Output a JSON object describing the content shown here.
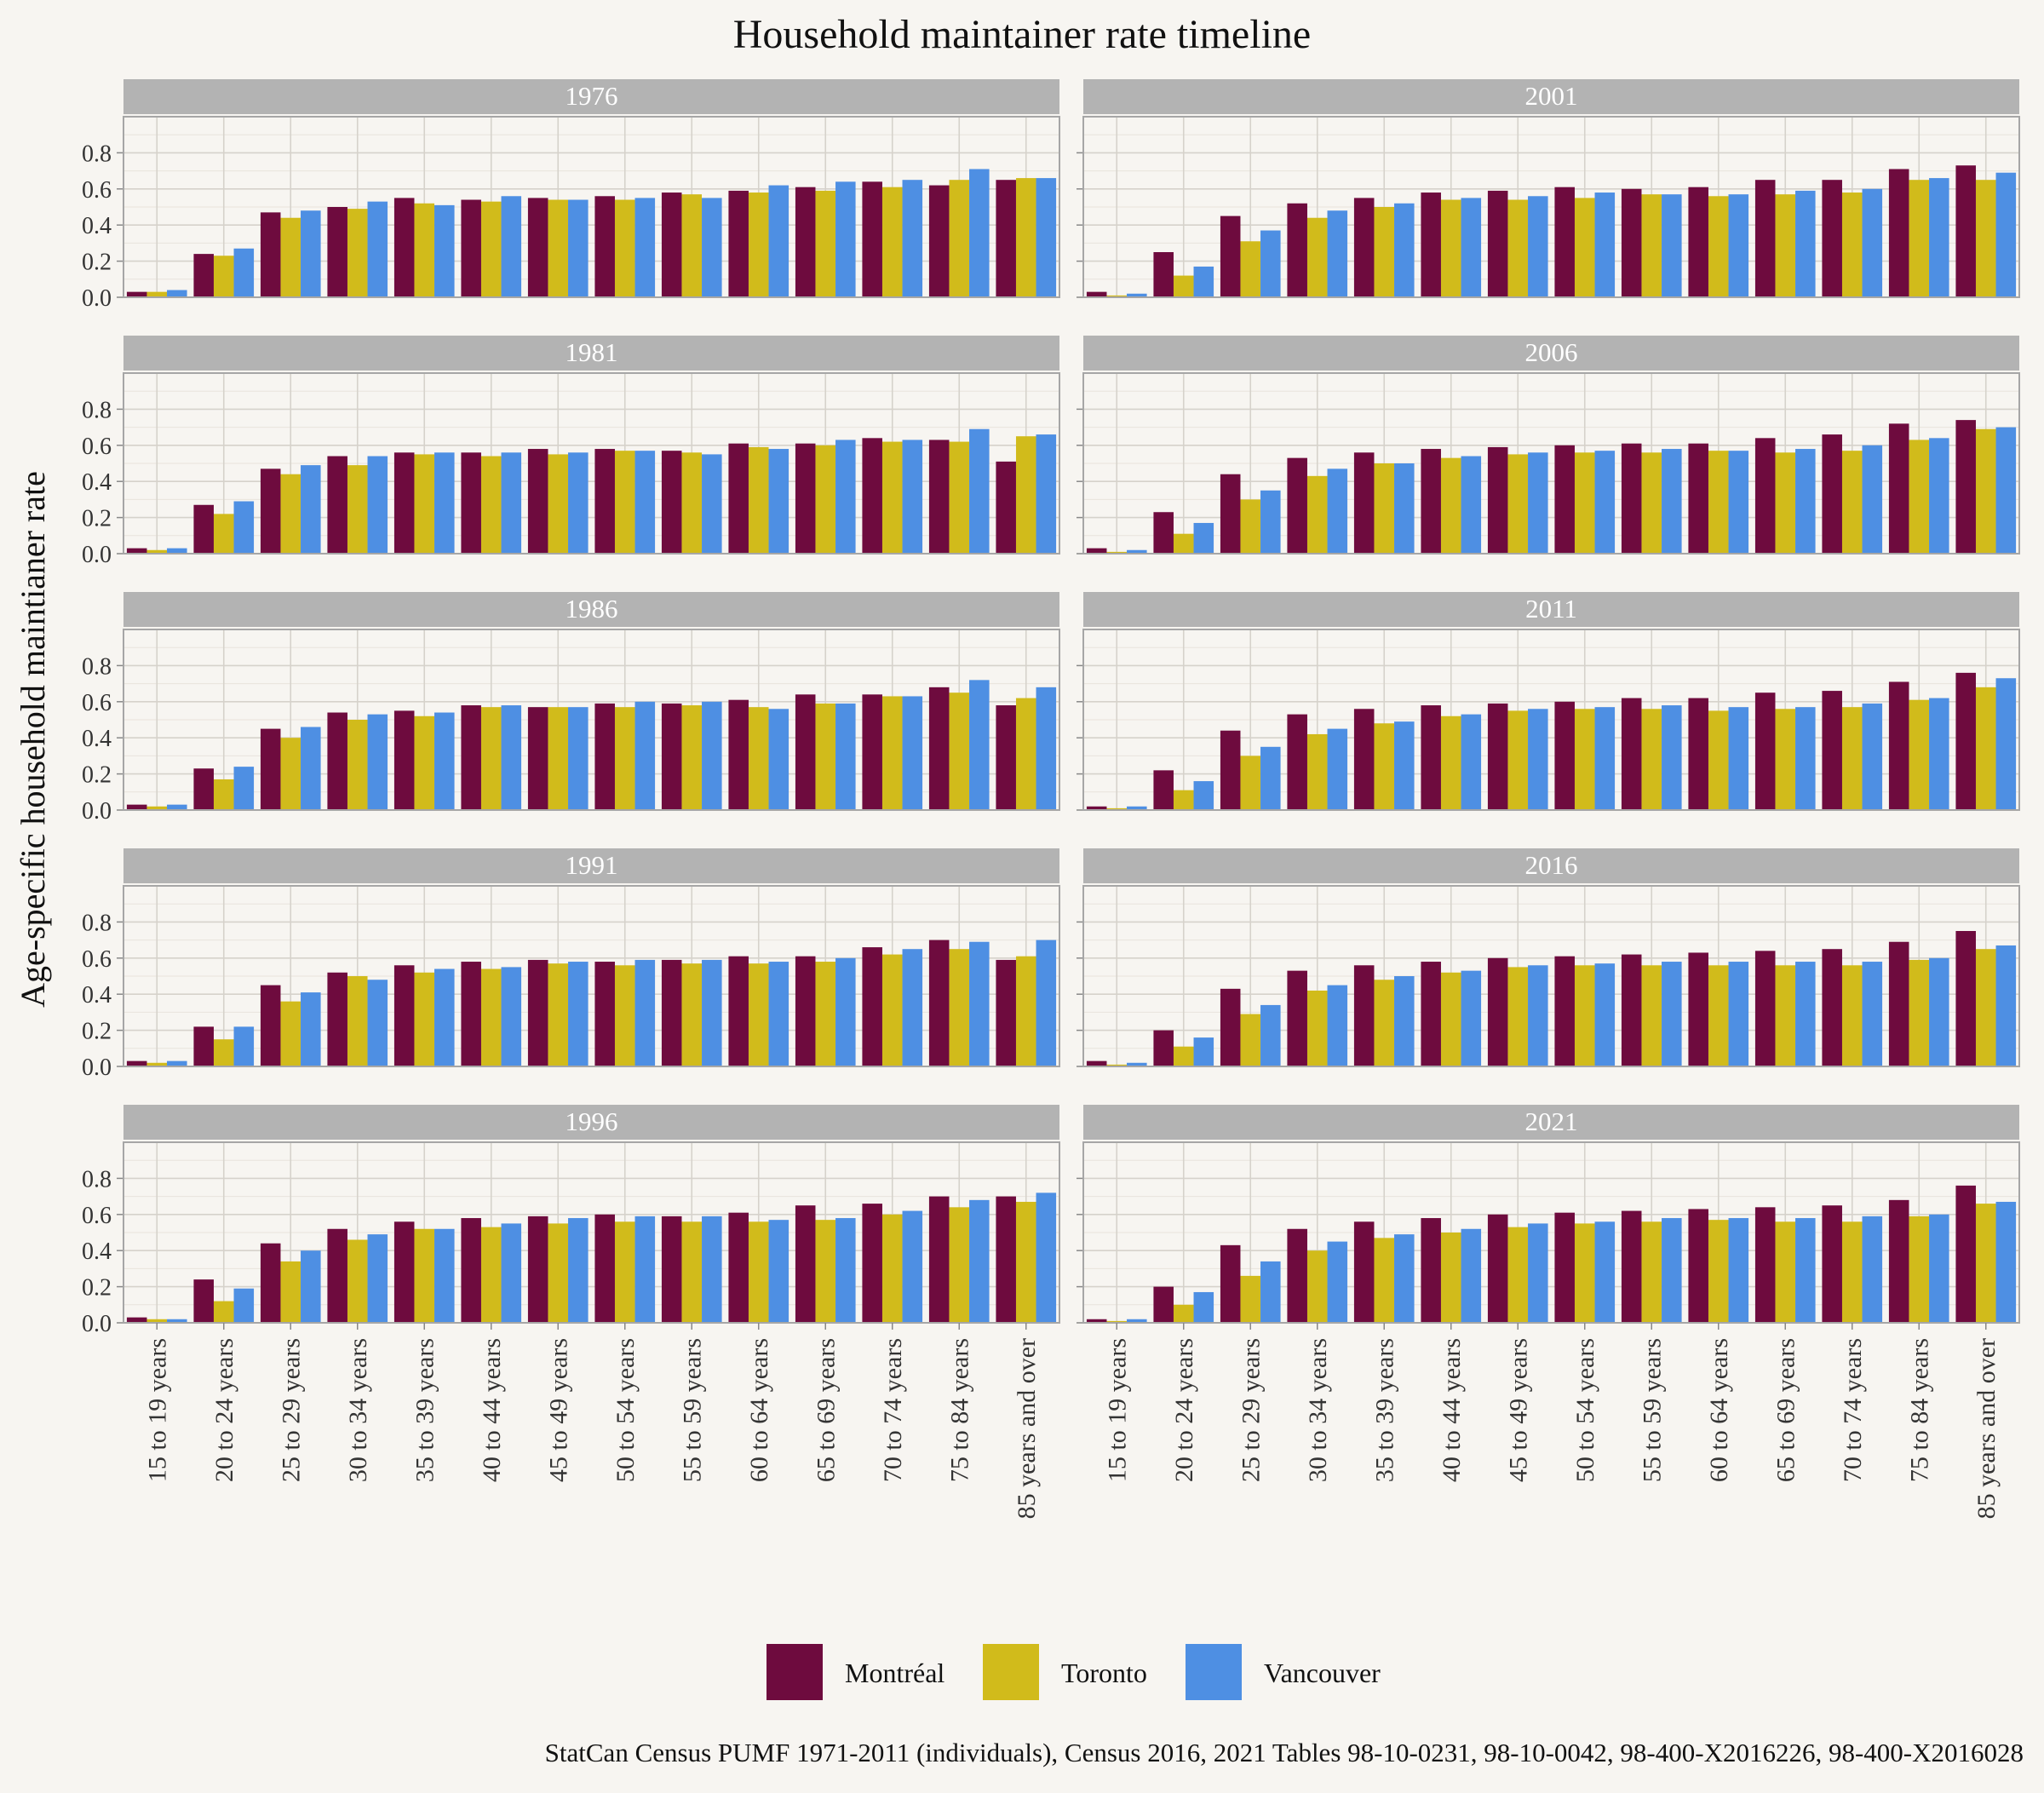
{
  "chart_data": {
    "type": "bar",
    "title": "Household maintainer rate timeline",
    "ylabel": "Age-specific household maintianer rate",
    "xlabel": "",
    "ylim": [
      0,
      1.0
    ],
    "yticks": [
      "0.0",
      "0.2",
      "0.4",
      "0.6",
      "0.8"
    ],
    "categories": [
      "15 to 19 years",
      "20 to 24 years",
      "25 to 29 years",
      "30 to 34 years",
      "35 to 39 years",
      "40 to 44 years",
      "45 to 49 years",
      "50 to 54 years",
      "55 to 59 years",
      "60 to 64 years",
      "65 to 69 years",
      "70 to 74 years",
      "75 to 84 years",
      "85 years and over"
    ],
    "series_names": [
      "Montréal",
      "Toronto",
      "Vancouver"
    ],
    "colors": [
      "#6e0b3e",
      "#d1bb1b",
      "#4e8fe3"
    ],
    "grid": true,
    "legend_position": "bottom",
    "caption": "StatCan Census PUMF 1971-2011 (individuals), Census 2016, 2021 Tables 98-10-0231, 98-10-0042, 98-400-X2016226, 98-400-X2016028",
    "panels": [
      {
        "label": "1976",
        "series": [
          {
            "name": "Montréal",
            "values": [
              0.03,
              0.24,
              0.47,
              0.5,
              0.55,
              0.54,
              0.55,
              0.56,
              0.58,
              0.59,
              0.61,
              0.64,
              0.62,
              0.65
            ]
          },
          {
            "name": "Toronto",
            "values": [
              0.03,
              0.23,
              0.44,
              0.49,
              0.52,
              0.53,
              0.54,
              0.54,
              0.57,
              0.58,
              0.59,
              0.61,
              0.65,
              0.66
            ]
          },
          {
            "name": "Vancouver",
            "values": [
              0.04,
              0.27,
              0.48,
              0.53,
              0.51,
              0.56,
              0.54,
              0.55,
              0.55,
              0.62,
              0.64,
              0.65,
              0.71,
              0.66
            ]
          }
        ]
      },
      {
        "label": "2001",
        "series": [
          {
            "name": "Montréal",
            "values": [
              0.03,
              0.25,
              0.45,
              0.52,
              0.55,
              0.58,
              0.59,
              0.61,
              0.6,
              0.61,
              0.65,
              0.65,
              0.71,
              0.73
            ]
          },
          {
            "name": "Toronto",
            "values": [
              0.01,
              0.12,
              0.31,
              0.44,
              0.5,
              0.54,
              0.54,
              0.55,
              0.57,
              0.56,
              0.57,
              0.58,
              0.65,
              0.65
            ]
          },
          {
            "name": "Vancouver",
            "values": [
              0.02,
              0.17,
              0.37,
              0.48,
              0.52,
              0.55,
              0.56,
              0.58,
              0.57,
              0.57,
              0.59,
              0.6,
              0.66,
              0.69
            ]
          }
        ]
      },
      {
        "label": "1981",
        "series": [
          {
            "name": "Montréal",
            "values": [
              0.03,
              0.27,
              0.47,
              0.54,
              0.56,
              0.56,
              0.58,
              0.58,
              0.57,
              0.61,
              0.61,
              0.64,
              0.63,
              0.51
            ]
          },
          {
            "name": "Toronto",
            "values": [
              0.02,
              0.22,
              0.44,
              0.49,
              0.55,
              0.54,
              0.55,
              0.57,
              0.56,
              0.59,
              0.6,
              0.62,
              0.62,
              0.65
            ]
          },
          {
            "name": "Vancouver",
            "values": [
              0.03,
              0.29,
              0.49,
              0.54,
              0.56,
              0.56,
              0.56,
              0.57,
              0.55,
              0.58,
              0.63,
              0.63,
              0.69,
              0.66
            ]
          }
        ]
      },
      {
        "label": "2006",
        "series": [
          {
            "name": "Montréal",
            "values": [
              0.03,
              0.23,
              0.44,
              0.53,
              0.56,
              0.58,
              0.59,
              0.6,
              0.61,
              0.61,
              0.64,
              0.66,
              0.72,
              0.74
            ]
          },
          {
            "name": "Toronto",
            "values": [
              0.01,
              0.11,
              0.3,
              0.43,
              0.5,
              0.53,
              0.55,
              0.56,
              0.56,
              0.57,
              0.56,
              0.57,
              0.63,
              0.69
            ]
          },
          {
            "name": "Vancouver",
            "values": [
              0.02,
              0.17,
              0.35,
              0.47,
              0.5,
              0.54,
              0.56,
              0.57,
              0.58,
              0.57,
              0.58,
              0.6,
              0.64,
              0.7
            ]
          }
        ]
      },
      {
        "label": "1986",
        "series": [
          {
            "name": "Montréal",
            "values": [
              0.03,
              0.23,
              0.45,
              0.54,
              0.55,
              0.58,
              0.57,
              0.59,
              0.59,
              0.61,
              0.64,
              0.64,
              0.68,
              0.58
            ]
          },
          {
            "name": "Toronto",
            "values": [
              0.02,
              0.17,
              0.4,
              0.5,
              0.52,
              0.57,
              0.57,
              0.57,
              0.58,
              0.57,
              0.59,
              0.63,
              0.65,
              0.62
            ]
          },
          {
            "name": "Vancouver",
            "values": [
              0.03,
              0.24,
              0.46,
              0.53,
              0.54,
              0.58,
              0.57,
              0.6,
              0.6,
              0.56,
              0.59,
              0.63,
              0.72,
              0.68
            ]
          }
        ]
      },
      {
        "label": "2011",
        "series": [
          {
            "name": "Montréal",
            "values": [
              0.02,
              0.22,
              0.44,
              0.53,
              0.56,
              0.58,
              0.59,
              0.6,
              0.62,
              0.62,
              0.65,
              0.66,
              0.71,
              0.76
            ]
          },
          {
            "name": "Toronto",
            "values": [
              0.01,
              0.11,
              0.3,
              0.42,
              0.48,
              0.52,
              0.55,
              0.56,
              0.56,
              0.55,
              0.56,
              0.57,
              0.61,
              0.68
            ]
          },
          {
            "name": "Vancouver",
            "values": [
              0.02,
              0.16,
              0.35,
              0.45,
              0.49,
              0.53,
              0.56,
              0.57,
              0.58,
              0.57,
              0.57,
              0.59,
              0.62,
              0.73
            ]
          }
        ]
      },
      {
        "label": "1991",
        "series": [
          {
            "name": "Montréal",
            "values": [
              0.03,
              0.22,
              0.45,
              0.52,
              0.56,
              0.58,
              0.59,
              0.58,
              0.59,
              0.61,
              0.61,
              0.66,
              0.7,
              0.59
            ]
          },
          {
            "name": "Toronto",
            "values": [
              0.02,
              0.15,
              0.36,
              0.5,
              0.52,
              0.54,
              0.57,
              0.56,
              0.57,
              0.57,
              0.58,
              0.62,
              0.65,
              0.61
            ]
          },
          {
            "name": "Vancouver",
            "values": [
              0.03,
              0.22,
              0.41,
              0.48,
              0.54,
              0.55,
              0.58,
              0.59,
              0.59,
              0.58,
              0.6,
              0.65,
              0.69,
              0.7
            ]
          }
        ]
      },
      {
        "label": "2016",
        "series": [
          {
            "name": "Montréal",
            "values": [
              0.03,
              0.2,
              0.43,
              0.53,
              0.56,
              0.58,
              0.6,
              0.61,
              0.62,
              0.63,
              0.64,
              0.65,
              0.69,
              0.75
            ]
          },
          {
            "name": "Toronto",
            "values": [
              0.01,
              0.11,
              0.29,
              0.42,
              0.48,
              0.52,
              0.55,
              0.56,
              0.56,
              0.56,
              0.56,
              0.56,
              0.59,
              0.65
            ]
          },
          {
            "name": "Vancouver",
            "values": [
              0.02,
              0.16,
              0.34,
              0.45,
              0.5,
              0.53,
              0.56,
              0.57,
              0.58,
              0.58,
              0.58,
              0.58,
              0.6,
              0.67
            ]
          }
        ]
      },
      {
        "label": "1996",
        "series": [
          {
            "name": "Montréal",
            "values": [
              0.03,
              0.24,
              0.44,
              0.52,
              0.56,
              0.58,
              0.59,
              0.6,
              0.59,
              0.61,
              0.65,
              0.66,
              0.7,
              0.7
            ]
          },
          {
            "name": "Toronto",
            "values": [
              0.02,
              0.12,
              0.34,
              0.46,
              0.52,
              0.53,
              0.55,
              0.56,
              0.56,
              0.56,
              0.57,
              0.6,
              0.64,
              0.67
            ]
          },
          {
            "name": "Vancouver",
            "values": [
              0.02,
              0.19,
              0.4,
              0.49,
              0.52,
              0.55,
              0.58,
              0.59,
              0.59,
              0.57,
              0.58,
              0.62,
              0.68,
              0.72
            ]
          }
        ]
      },
      {
        "label": "2021",
        "series": [
          {
            "name": "Montréal",
            "values": [
              0.02,
              0.2,
              0.43,
              0.52,
              0.56,
              0.58,
              0.6,
              0.61,
              0.62,
              0.63,
              0.64,
              0.65,
              0.68,
              0.76
            ]
          },
          {
            "name": "Toronto",
            "values": [
              0.01,
              0.1,
              0.26,
              0.4,
              0.47,
              0.5,
              0.53,
              0.55,
              0.56,
              0.57,
              0.56,
              0.56,
              0.59,
              0.66
            ]
          },
          {
            "name": "Vancouver",
            "values": [
              0.02,
              0.17,
              0.34,
              0.45,
              0.49,
              0.52,
              0.55,
              0.56,
              0.58,
              0.58,
              0.58,
              0.59,
              0.6,
              0.67
            ]
          }
        ]
      }
    ]
  }
}
